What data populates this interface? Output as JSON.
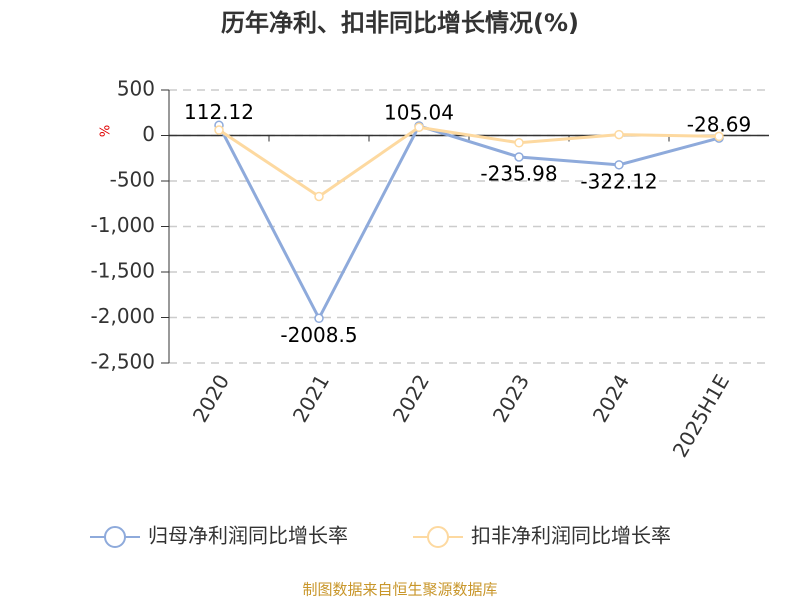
{
  "chart_data": {
    "type": "line",
    "title": "历年净利、扣非同比增长情况(%)",
    "y_label": "%",
    "categories": [
      "2020",
      "2021",
      "2022",
      "2023",
      "2024",
      "2025H1E"
    ],
    "series": [
      {
        "name": "归母净利润同比增长率",
        "color": "#8eaadb",
        "values": [
          112.12,
          -2008.5,
          105.04,
          -235.98,
          -322.12,
          -28.69
        ]
      },
      {
        "name": "扣非净利润同比增长率",
        "color": "#fdd9a0",
        "values": [
          60,
          -670,
          90,
          -80,
          10,
          -10
        ]
      }
    ],
    "ylim": [
      -2500,
      500
    ],
    "yticks": [
      {
        "value": -2500,
        "label": "-2,500"
      },
      {
        "value": -2000,
        "label": "-2,000"
      },
      {
        "value": -1500,
        "label": "-1,500"
      },
      {
        "value": -1000,
        "label": "-1,000"
      },
      -500,
      0,
      500
    ],
    "grid": true,
    "footer": "制图数据来自恒生聚源数据库"
  }
}
